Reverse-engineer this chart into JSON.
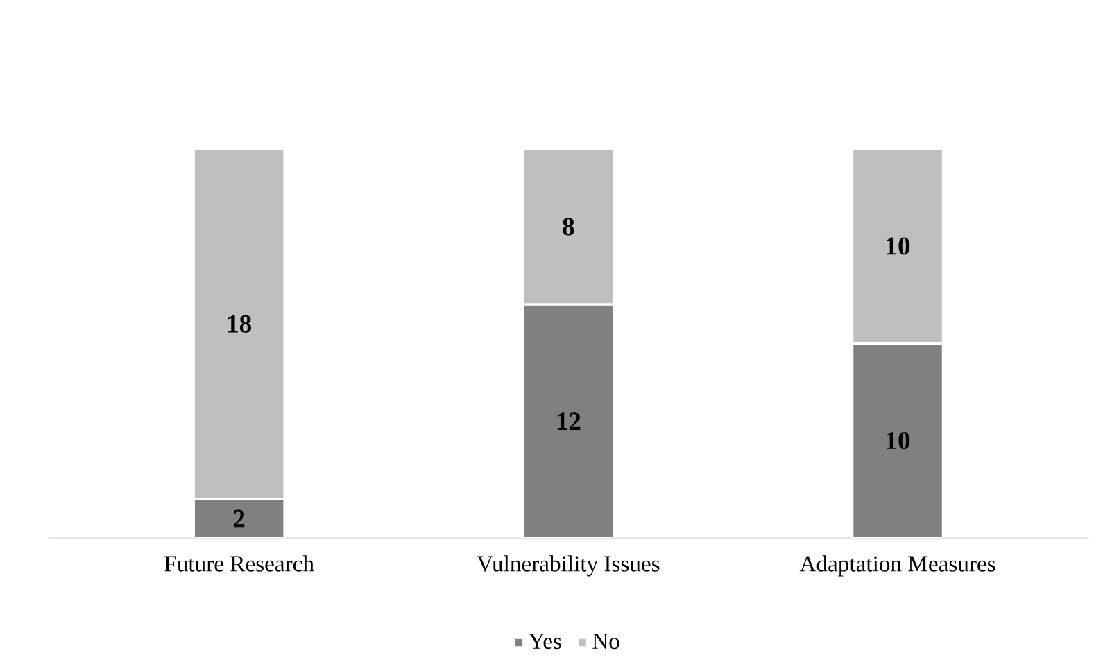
{
  "chart_data": {
    "type": "bar",
    "stacked": true,
    "data_labels": true,
    "legend": "bottom",
    "categories": [
      "Future Research",
      "Vulnerability Issues",
      "Adaptation Measures"
    ],
    "series": [
      {
        "name": "Yes",
        "color": "#808080",
        "values": [
          2,
          12,
          10
        ]
      },
      {
        "name": "No",
        "color": "#bfbfbf",
        "values": [
          18,
          8,
          10
        ]
      }
    ]
  }
}
